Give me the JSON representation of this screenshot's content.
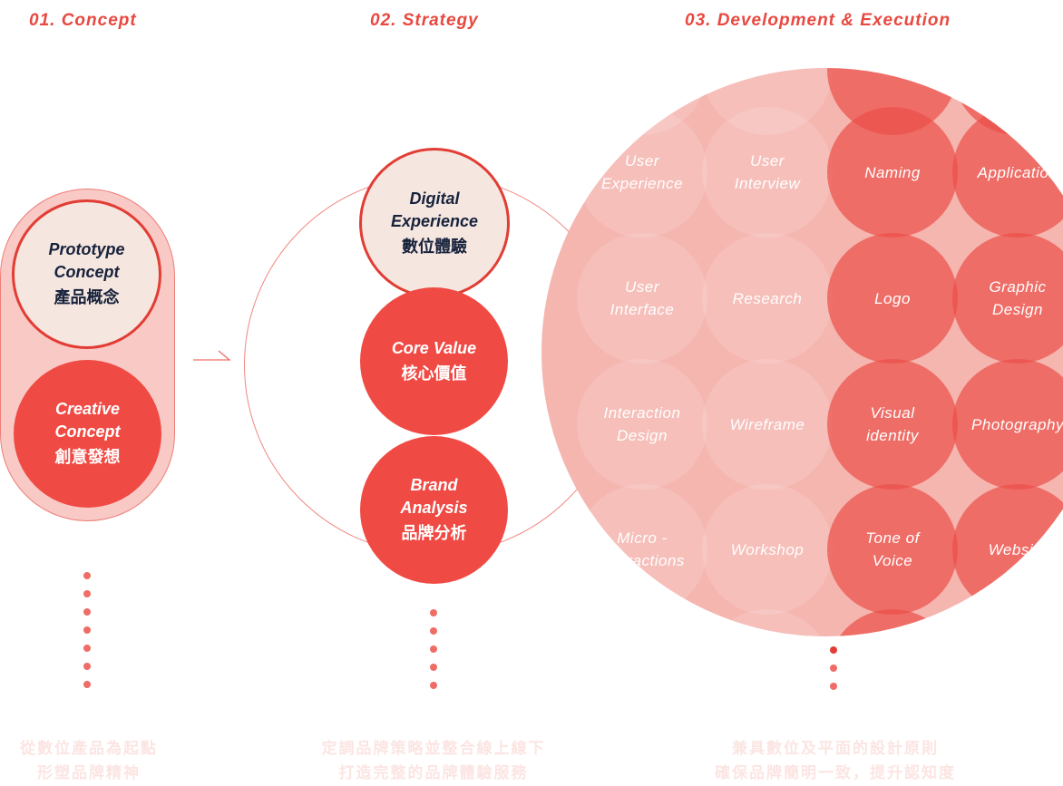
{
  "headings": {
    "concept": "01. Concept",
    "strategy": "02. Strategy",
    "development": "03. Development & Execution"
  },
  "concept": {
    "circles": [
      {
        "en_lines": [
          "Prototype",
          "Concept"
        ],
        "zh": "產品概念"
      },
      {
        "en_lines": [
          "Creative",
          "Concept"
        ],
        "zh": "創意發想"
      }
    ],
    "footer": [
      "從數位產品為起點",
      "形塑品牌精神"
    ]
  },
  "strategy": {
    "circles": [
      {
        "en_lines": [
          "Digital",
          "Experience"
        ],
        "zh": "數位體驗"
      },
      {
        "en_lines": [
          "Core Value"
        ],
        "zh": "核心價值"
      },
      {
        "en_lines": [
          "Brand",
          "Analysis"
        ],
        "zh": "品牌分析"
      }
    ],
    "footer": [
      "定調品牌策略並整合線上線下",
      "打造完整的品牌體驗服務"
    ]
  },
  "development": {
    "columns": [
      [
        [
          "User",
          "Experience"
        ],
        [
          "User",
          "Interface"
        ],
        [
          "Interaction",
          "Design"
        ],
        [
          "Micro -",
          "Interactions"
        ]
      ],
      [
        [
          "User",
          "Interview"
        ],
        [
          "Research"
        ],
        [
          "Wireframe"
        ],
        [
          "Workshop"
        ]
      ],
      [
        [
          "Naming"
        ],
        [
          "Logo"
        ],
        [
          "Visual",
          "identity"
        ],
        [
          "Tone of",
          "Voice"
        ]
      ],
      [
        [
          "Application"
        ],
        [
          "Graphic",
          "Design"
        ],
        [
          "Photography"
        ],
        [
          "Website"
        ]
      ]
    ],
    "footer": [
      "兼具數位及平面的設計原則",
      "確保品牌簡明一致，提升認知度"
    ]
  },
  "colors": {
    "accent": "#e8483f",
    "red_fill": "#f04a44",
    "light_fill": "#f5e6e0",
    "pill_fill": "#f9c9c5",
    "big_circle": "#f5b6b0",
    "text_dark": "#17223b",
    "footer_text": "#fbe5e2"
  }
}
